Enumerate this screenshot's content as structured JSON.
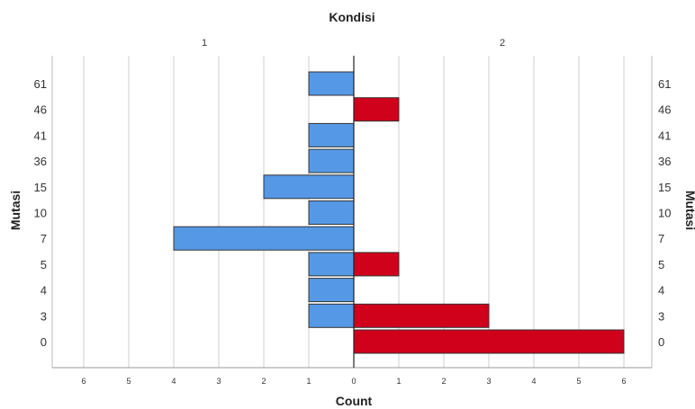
{
  "chart_data": {
    "type": "bar",
    "orientation": "horizontal-back-to-back",
    "title": "Kondisi",
    "xlabel": "Count",
    "ylabel": "Mutasi",
    "ylabel_right": "Mutasi",
    "categories": [
      "61",
      "46",
      "41",
      "36",
      "15",
      "10",
      "7",
      "5",
      "4",
      "3",
      "0"
    ],
    "series": [
      {
        "name": "1",
        "color": "#5599e6",
        "direction": "left",
        "values": [
          1,
          0,
          1,
          1,
          2,
          1,
          4,
          1,
          1,
          1,
          0
        ]
      },
      {
        "name": "2",
        "color": "#d0021b",
        "direction": "right",
        "values": [
          0,
          1,
          0,
          0,
          0,
          0,
          0,
          1,
          0,
          3,
          6
        ]
      }
    ],
    "xlim": [
      0,
      6
    ],
    "x_ticks": [
      "6",
      "5",
      "4",
      "3",
      "2",
      "1",
      "0"
    ],
    "x_ticks_right": [
      "0",
      "1",
      "2",
      "3",
      "4",
      "5",
      "6"
    ],
    "grid": true,
    "legend": "none"
  }
}
